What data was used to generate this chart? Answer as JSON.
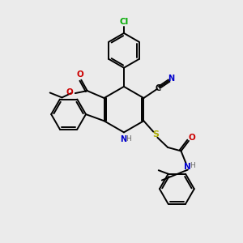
{
  "bg_color": "#ebebeb",
  "atom_colors": {
    "C": "#000000",
    "N": "#0000cc",
    "O": "#cc0000",
    "S": "#aaaa00",
    "Cl": "#00aa00",
    "H": "#666666"
  },
  "lw": 1.4
}
